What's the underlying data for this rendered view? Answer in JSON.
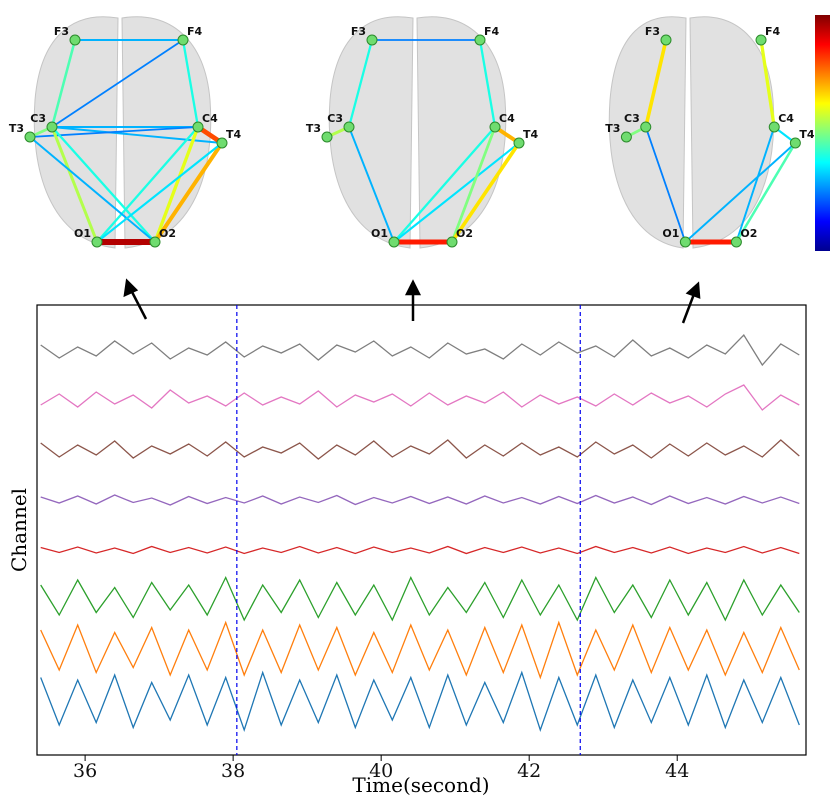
{
  "chart_data": [
    {
      "type": "network",
      "networks": [
        {
          "nodes": [
            "F3",
            "F4",
            "C3",
            "C4",
            "T3",
            "T4",
            "O1",
            "O2"
          ],
          "edges": [
            [
              0,
              1,
              0.3
            ],
            [
              0,
              2,
              0.45
            ],
            [
              1,
              3,
              0.4
            ],
            [
              1,
              2,
              0.25
            ],
            [
              2,
              3,
              0.3
            ],
            [
              2,
              5,
              0.3
            ],
            [
              4,
              3,
              0.25
            ],
            [
              2,
              6,
              0.55
            ],
            [
              2,
              7,
              0.4
            ],
            [
              3,
              6,
              0.4
            ],
            [
              3,
              7,
              0.6
            ],
            [
              5,
              7,
              0.7
            ],
            [
              4,
              7,
              0.3
            ],
            [
              5,
              6,
              0.35
            ],
            [
              3,
              5,
              0.8
            ],
            [
              6,
              7,
              0.95
            ],
            [
              2,
              4,
              0.5
            ]
          ]
        },
        {
          "nodes": [
            "F3",
            "F4",
            "C3",
            "C4",
            "T3",
            "T4",
            "O1",
            "O2"
          ],
          "edges": [
            [
              0,
              1,
              0.25
            ],
            [
              0,
              2,
              0.4
            ],
            [
              1,
              3,
              0.4
            ],
            [
              2,
              4,
              0.55
            ],
            [
              2,
              6,
              0.3
            ],
            [
              3,
              6,
              0.4
            ],
            [
              5,
              6,
              0.35
            ],
            [
              3,
              7,
              0.5
            ],
            [
              5,
              7,
              0.65
            ],
            [
              3,
              5,
              0.7
            ],
            [
              6,
              7,
              0.85
            ]
          ]
        },
        {
          "nodes": [
            "F3",
            "F4",
            "C3",
            "C4",
            "T3",
            "T4",
            "O1",
            "O2"
          ],
          "edges": [
            [
              0,
              2,
              0.65
            ],
            [
              1,
              3,
              0.6
            ],
            [
              2,
              4,
              0.5
            ],
            [
              2,
              6,
              0.25
            ],
            [
              3,
              7,
              0.3
            ],
            [
              5,
              6,
              0.3
            ],
            [
              5,
              7,
              0.45
            ],
            [
              3,
              5,
              0.35
            ],
            [
              6,
              7,
              0.85
            ]
          ]
        }
      ]
    },
    {
      "type": "line",
      "xlabel": "Time(second)",
      "ylabel": "Channel",
      "xlim": [
        35.35,
        45.74
      ],
      "ylim": [
        -0.1,
        8.9
      ],
      "xticks": [
        36,
        38,
        40,
        42,
        44
      ],
      "vlines": [
        38.05,
        42.69
      ],
      "vline_color": "#0000ee",
      "x": [
        35.4,
        35.65,
        35.9,
        36.15,
        36.4,
        36.65,
        36.9,
        37.15,
        37.4,
        37.65,
        37.9,
        38.15,
        38.4,
        38.65,
        38.9,
        39.15,
        39.4,
        39.65,
        39.9,
        40.15,
        40.4,
        40.65,
        40.9,
        41.15,
        41.4,
        41.65,
        41.9,
        42.15,
        42.4,
        42.65,
        42.9,
        43.15,
        43.4,
        43.65,
        43.9,
        44.15,
        44.4,
        44.65,
        44.9,
        45.15,
        45.4,
        45.65
      ],
      "series": [
        {
          "color": "#7f7f7f",
          "values": [
            8.1,
            7.84,
            8.06,
            7.88,
            8.18,
            7.92,
            8.14,
            7.82,
            8.04,
            7.9,
            8.16,
            7.86,
            8.08,
            7.94,
            8.12,
            7.8,
            8.1,
            7.96,
            8.18,
            7.88,
            8.06,
            7.84,
            8.14,
            7.92,
            8.02,
            7.82,
            8.12,
            7.9,
            8.16,
            7.94,
            8.08,
            7.86,
            8.2,
            7.88,
            8.04,
            7.84,
            8.1,
            7.92,
            8.3,
            7.7,
            8.12,
            7.9
          ]
        },
        {
          "color": "#e377c2",
          "values": [
            6.9,
            7.12,
            6.86,
            7.16,
            6.92,
            7.1,
            6.84,
            7.2,
            6.94,
            7.08,
            6.88,
            7.14,
            6.9,
            7.06,
            6.92,
            7.18,
            6.86,
            7.1,
            6.96,
            7.12,
            6.88,
            7.14,
            6.9,
            7.08,
            6.94,
            7.16,
            6.86,
            7.1,
            6.92,
            7.06,
            6.88,
            7.12,
            6.9,
            7.14,
            6.94,
            7.08,
            6.86,
            7.12,
            7.3,
            6.8,
            7.1,
            6.9
          ]
        },
        {
          "color": "#8c564b",
          "values": [
            6.14,
            5.86,
            6.1,
            5.9,
            6.18,
            5.84,
            6.08,
            5.92,
            6.12,
            5.88,
            6.16,
            5.86,
            6.06,
            5.94,
            6.14,
            5.82,
            6.1,
            5.9,
            6.18,
            5.86,
            6.08,
            5.92,
            6.2,
            5.84,
            6.1,
            5.88,
            6.14,
            5.9,
            6.06,
            5.86,
            6.16,
            5.92,
            6.1,
            5.84,
            6.12,
            5.88,
            6.14,
            5.9,
            6.08,
            5.86,
            6.2,
            5.88
          ]
        },
        {
          "color": "#9467bd",
          "values": [
            5.06,
            4.94,
            5.08,
            4.92,
            5.1,
            4.95,
            5.04,
            4.9,
            5.07,
            4.93,
            5.05,
            4.94,
            5.08,
            4.92,
            5.06,
            4.95,
            5.09,
            4.91,
            5.05,
            4.94,
            5.07,
            4.93,
            5.06,
            4.92,
            5.08,
            4.94,
            5.05,
            4.92,
            5.07,
            4.93,
            5.09,
            4.94,
            5.06,
            4.91,
            5.08,
            4.93,
            5.05,
            4.92,
            5.07,
            4.94,
            5.06,
            4.93
          ]
        },
        {
          "color": "#d62728",
          "values": [
            4.05,
            3.95,
            4.06,
            3.94,
            4.04,
            3.93,
            4.07,
            3.95,
            4.05,
            3.94,
            4.06,
            3.93,
            4.04,
            3.95,
            4.07,
            3.94,
            4.05,
            3.93,
            4.06,
            3.95,
            4.04,
            3.94,
            4.07,
            3.93,
            4.05,
            3.95,
            4.06,
            3.94,
            4.04,
            3.93,
            4.07,
            3.95,
            4.05,
            3.94,
            4.06,
            3.93,
            4.04,
            3.95,
            4.07,
            3.94,
            4.05,
            3.93
          ]
        },
        {
          "color": "#2ca02c",
          "values": [
            3.3,
            2.7,
            3.4,
            2.75,
            3.25,
            2.65,
            3.35,
            2.8,
            3.3,
            2.7,
            3.45,
            2.6,
            3.3,
            2.75,
            3.4,
            2.65,
            3.35,
            2.7,
            3.3,
            2.6,
            3.45,
            2.7,
            3.25,
            2.75,
            3.35,
            2.65,
            3.4,
            2.7,
            3.3,
            2.6,
            3.45,
            2.75,
            3.3,
            2.65,
            3.4,
            2.7,
            3.35,
            2.6,
            3.4,
            2.7,
            3.3,
            2.75
          ]
        },
        {
          "color": "#ff7f0e",
          "values": [
            2.4,
            1.6,
            2.5,
            1.55,
            2.35,
            1.65,
            2.45,
            1.5,
            2.4,
            1.6,
            2.55,
            1.5,
            2.4,
            1.55,
            2.5,
            1.6,
            2.45,
            1.5,
            2.35,
            1.55,
            2.5,
            1.6,
            2.4,
            1.5,
            2.45,
            1.55,
            2.5,
            1.45,
            2.55,
            1.5,
            2.4,
            1.6,
            2.5,
            1.55,
            2.45,
            1.6,
            2.4,
            1.5,
            2.35,
            1.55,
            2.45,
            1.6
          ]
        },
        {
          "color": "#1f77b4",
          "values": [
            1.45,
            0.5,
            1.4,
            0.55,
            1.5,
            0.45,
            1.35,
            0.6,
            1.5,
            0.5,
            1.45,
            0.4,
            1.55,
            0.5,
            1.4,
            0.55,
            1.5,
            0.45,
            1.4,
            0.6,
            1.45,
            0.45,
            1.5,
            0.5,
            1.35,
            0.55,
            1.55,
            0.4,
            1.45,
            0.5,
            1.5,
            0.45,
            1.4,
            0.55,
            1.45,
            0.5,
            1.5,
            0.45,
            1.4,
            0.55,
            1.45,
            0.5
          ]
        }
      ]
    }
  ]
}
